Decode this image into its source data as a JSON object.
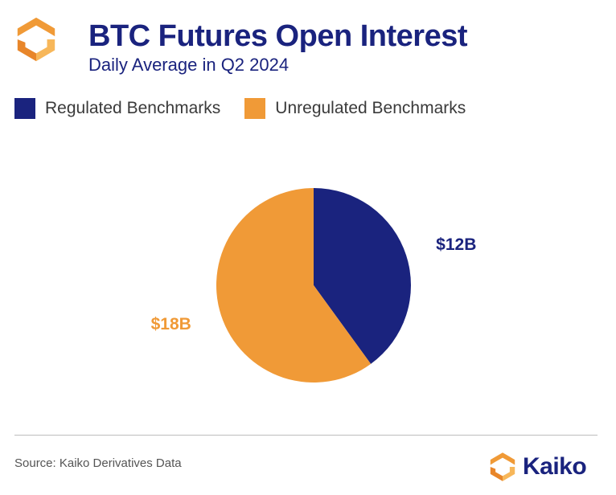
{
  "header": {
    "title": "BTC Futures Open Interest",
    "subtitle": "Daily Average in Q2 2024",
    "logo_icon": "kaiko-hexagon-logo-icon"
  },
  "colors": {
    "navy": "#1a237e",
    "orange": "#f09a37"
  },
  "chart_data": {
    "type": "pie",
    "title": "BTC Futures Open Interest",
    "subtitle": "Daily Average in Q2 2024",
    "legend_position": "top-left",
    "series": [
      {
        "name": "Regulated Benchmarks",
        "value": 12,
        "label": "$12B",
        "color": "#1a237e"
      },
      {
        "name": "Unregulated Benchmarks",
        "value": 18,
        "label": "$18B",
        "color": "#f09a37"
      }
    ],
    "start_angle_deg": 0,
    "direction": "clockwise"
  },
  "footer": {
    "source": "Source: Kaiko Derivatives Data",
    "brand_name": "Kaiko",
    "brand_icon": "kaiko-hexagon-logo-icon"
  }
}
